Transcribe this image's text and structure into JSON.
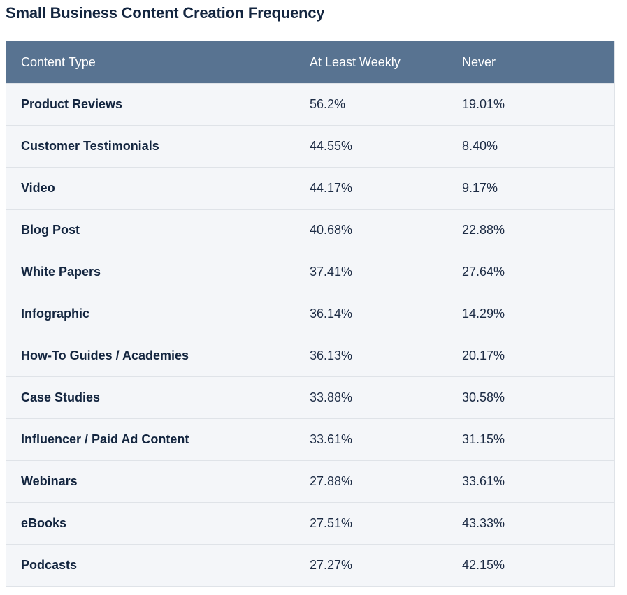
{
  "title": "Small Business Content Creation Frequency",
  "chart_data": {
    "type": "table",
    "title": "Small Business Content Creation Frequency",
    "columns": [
      "Content Type",
      "At Least Weekly",
      "Never"
    ],
    "rows": [
      {
        "type": "Product Reviews",
        "weekly": "56.2%",
        "never": "19.01%"
      },
      {
        "type": "Customer Testimonials",
        "weekly": "44.55%",
        "never": "8.40%"
      },
      {
        "type": "Video",
        "weekly": "44.17%",
        "never": "9.17%"
      },
      {
        "type": "Blog Post",
        "weekly": "40.68%",
        "never": "22.88%"
      },
      {
        "type": "White Papers",
        "weekly": "37.41%",
        "never": "27.64%"
      },
      {
        "type": "Infographic",
        "weekly": "36.14%",
        "never": "14.29%"
      },
      {
        "type": "How-To Guides / Academies",
        "weekly": "36.13%",
        "never": "20.17%"
      },
      {
        "type": "Case Studies",
        "weekly": "33.88%",
        "never": "30.58%"
      },
      {
        "type": "Influencer / Paid Ad Content",
        "weekly": "33.61%",
        "never": "31.15%"
      },
      {
        "type": "Webinars",
        "weekly": "27.88%",
        "never": "33.61%"
      },
      {
        "type": "eBooks",
        "weekly": "27.51%",
        "never": "43.33%"
      },
      {
        "type": "Podcasts",
        "weekly": "27.27%",
        "never": "42.15%"
      }
    ]
  },
  "colors": {
    "header_bg": "#587391",
    "row_bg": "#f4f6f9",
    "title": "#13253f"
  }
}
